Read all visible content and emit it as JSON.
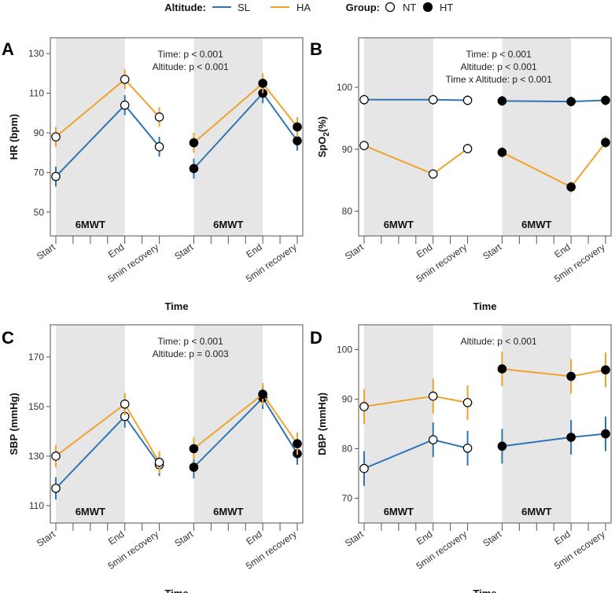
{
  "legend": {
    "altitude_title": "Altitude:",
    "altitude_items": [
      {
        "label": "SL",
        "color": "#2e75b6"
      },
      {
        "label": "HA",
        "color": "#f0a22e"
      }
    ],
    "group_title": "Group:",
    "group_items": [
      {
        "label": "NT",
        "marker": "open-circle"
      },
      {
        "label": "HT",
        "marker": "filled-circle"
      }
    ]
  },
  "colors": {
    "SL": "#2e75b6",
    "HA": "#f0a22e",
    "shade": "#e6e6e6"
  },
  "x_ticks": [
    "Start",
    "End",
    "5min recovery",
    "Start",
    "End",
    "5min recovery"
  ],
  "shade_label": "6MWT",
  "chart_data": [
    {
      "letter": "A",
      "type": "line",
      "ylabel": "HR (bpm)",
      "xlabel": "Time",
      "ylim": [
        38,
        138
      ],
      "yticks": [
        50,
        70,
        90,
        110,
        130
      ],
      "annotation": [
        "Time: p < 0.001",
        "Altitude: p < 0.001"
      ],
      "series": [
        {
          "name": "SL NT",
          "altitude": "SL",
          "group": "NT",
          "values": [
            68,
            104,
            83
          ],
          "err": [
            5,
            5,
            5
          ]
        },
        {
          "name": "HA NT",
          "altitude": "HA",
          "group": "NT",
          "values": [
            88,
            117,
            98
          ],
          "err": [
            5,
            5,
            5
          ]
        },
        {
          "name": "SL HT",
          "altitude": "SL",
          "group": "HT",
          "values": [
            72,
            110,
            86
          ],
          "err": [
            5,
            5,
            5
          ]
        },
        {
          "name": "HA HT",
          "altitude": "HA",
          "group": "HT",
          "values": [
            85,
            115,
            93
          ],
          "err": [
            5,
            5,
            5
          ]
        }
      ]
    },
    {
      "letter": "B",
      "type": "line",
      "ylabel": "SpO2(%)",
      "xlabel": "Time",
      "ylim": [
        76,
        108
      ],
      "yticks": [
        80,
        90,
        100
      ],
      "annotation": [
        "Time: p < 0.001",
        "Altitude: p < 0.001",
        "Time x Altitude: p < 0.001"
      ],
      "series": [
        {
          "name": "SL NT",
          "altitude": "SL",
          "group": "NT",
          "values": [
            98,
            98,
            97.9
          ],
          "err": [
            0.8,
            0.8,
            0.8
          ]
        },
        {
          "name": "HA NT",
          "altitude": "HA",
          "group": "NT",
          "values": [
            90.6,
            86,
            90.1
          ],
          "err": [
            0.8,
            0.8,
            0.8
          ]
        },
        {
          "name": "SL HT",
          "altitude": "SL",
          "group": "HT",
          "values": [
            97.8,
            97.7,
            97.9
          ],
          "err": [
            0.8,
            0.8,
            0.8
          ]
        },
        {
          "name": "HA HT",
          "altitude": "HA",
          "group": "HT",
          "values": [
            89.5,
            83.9,
            91.1
          ],
          "err": [
            0.9,
            0.9,
            0.9
          ]
        }
      ]
    },
    {
      "letter": "C",
      "type": "line",
      "ylabel": "SBP (mmHg)",
      "xlabel": "Time",
      "ylim": [
        103,
        183
      ],
      "yticks": [
        110,
        130,
        150,
        170
      ],
      "annotation": [
        "Time: p < 0.001",
        "Altitude: p = 0.003"
      ],
      "series": [
        {
          "name": "SL NT",
          "altitude": "SL",
          "group": "NT",
          "values": [
            117,
            146,
            126.5
          ],
          "err": [
            4.5,
            4.5,
            4.5
          ]
        },
        {
          "name": "HA NT",
          "altitude": "HA",
          "group": "NT",
          "values": [
            130,
            151,
            127.5
          ],
          "err": [
            4.5,
            4.5,
            4.5
          ]
        },
        {
          "name": "SL HT",
          "altitude": "SL",
          "group": "HT",
          "values": [
            125.5,
            153.5,
            131
          ],
          "err": [
            4.5,
            4.5,
            4.5
          ]
        },
        {
          "name": "HA HT",
          "altitude": "HA",
          "group": "HT",
          "values": [
            133,
            155,
            135
          ],
          "err": [
            4.5,
            4.5,
            4.5
          ]
        }
      ]
    },
    {
      "letter": "D",
      "type": "line",
      "ylabel": "DBP (mmHg)",
      "xlabel": "Time",
      "ylim": [
        65,
        105
      ],
      "yticks": [
        70,
        80,
        90,
        100
      ],
      "annotation": [
        "Altitude: p < 0.001"
      ],
      "series": [
        {
          "name": "SL NT",
          "altitude": "SL",
          "group": "NT",
          "values": [
            76,
            81.8,
            80.1
          ],
          "err": [
            3.5,
            3.5,
            3.5
          ]
        },
        {
          "name": "HA NT",
          "altitude": "HA",
          "group": "NT",
          "values": [
            88.5,
            90.6,
            89.3
          ],
          "err": [
            3.5,
            3.5,
            3.5
          ]
        },
        {
          "name": "SL HT",
          "altitude": "SL",
          "group": "HT",
          "values": [
            80.5,
            82.3,
            83
          ],
          "err": [
            3.5,
            3.5,
            3.5
          ]
        },
        {
          "name": "HA HT",
          "altitude": "HA",
          "group": "HT",
          "values": [
            96.1,
            94.6,
            95.9
          ],
          "err": [
            3.5,
            3.5,
            3.5
          ]
        }
      ]
    }
  ]
}
